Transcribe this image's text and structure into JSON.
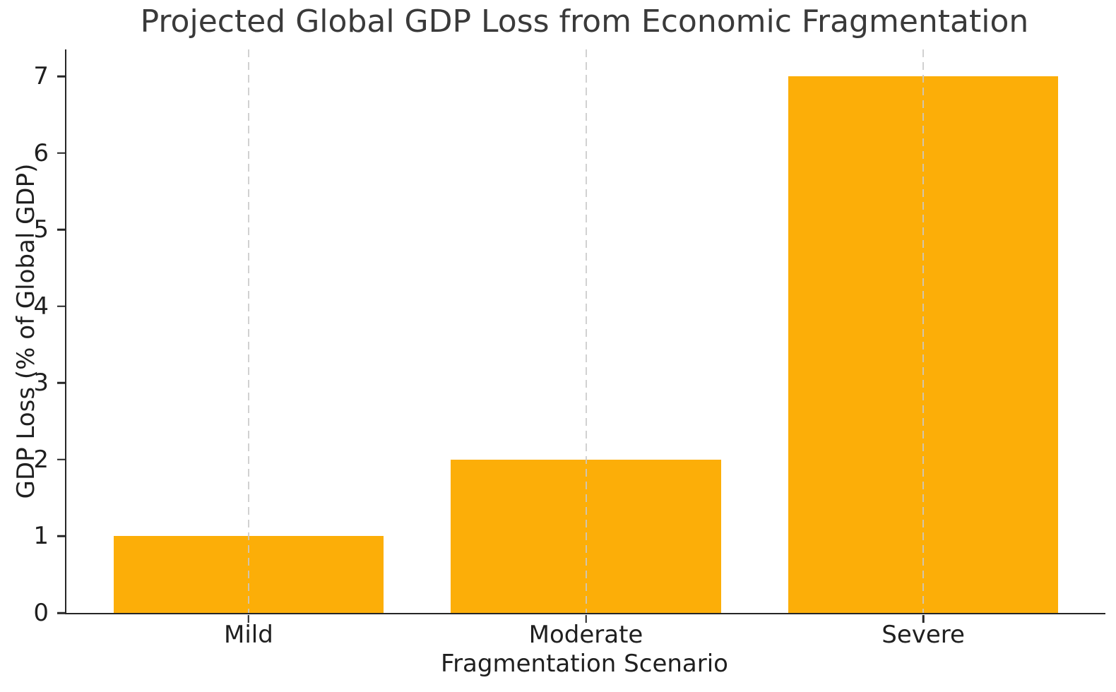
{
  "chart_data": {
    "type": "bar",
    "title": "Projected Global GDP Loss from Economic Fragmentation",
    "xlabel": "Fragmentation Scenario",
    "ylabel": "GDP Loss (% of Global GDP)",
    "categories": [
      "Mild",
      "Moderate",
      "Severe"
    ],
    "values": [
      1,
      2,
      7
    ],
    "yticks": [
      0,
      1,
      2,
      3,
      4,
      5,
      6,
      7
    ],
    "ylim": [
      0,
      7.35
    ],
    "xlim": [
      -0.54,
      2.54
    ],
    "bar_width": 0.8,
    "grid": "vertical dashed gridlines at category centers, drawn above bars",
    "legend": "none",
    "colors": {
      "bar": "#fcae08",
      "grid": "#c9c9c9",
      "spine": "#262626",
      "tick_text": "#1f1f1f",
      "title_text": "#3a3a3a"
    }
  }
}
